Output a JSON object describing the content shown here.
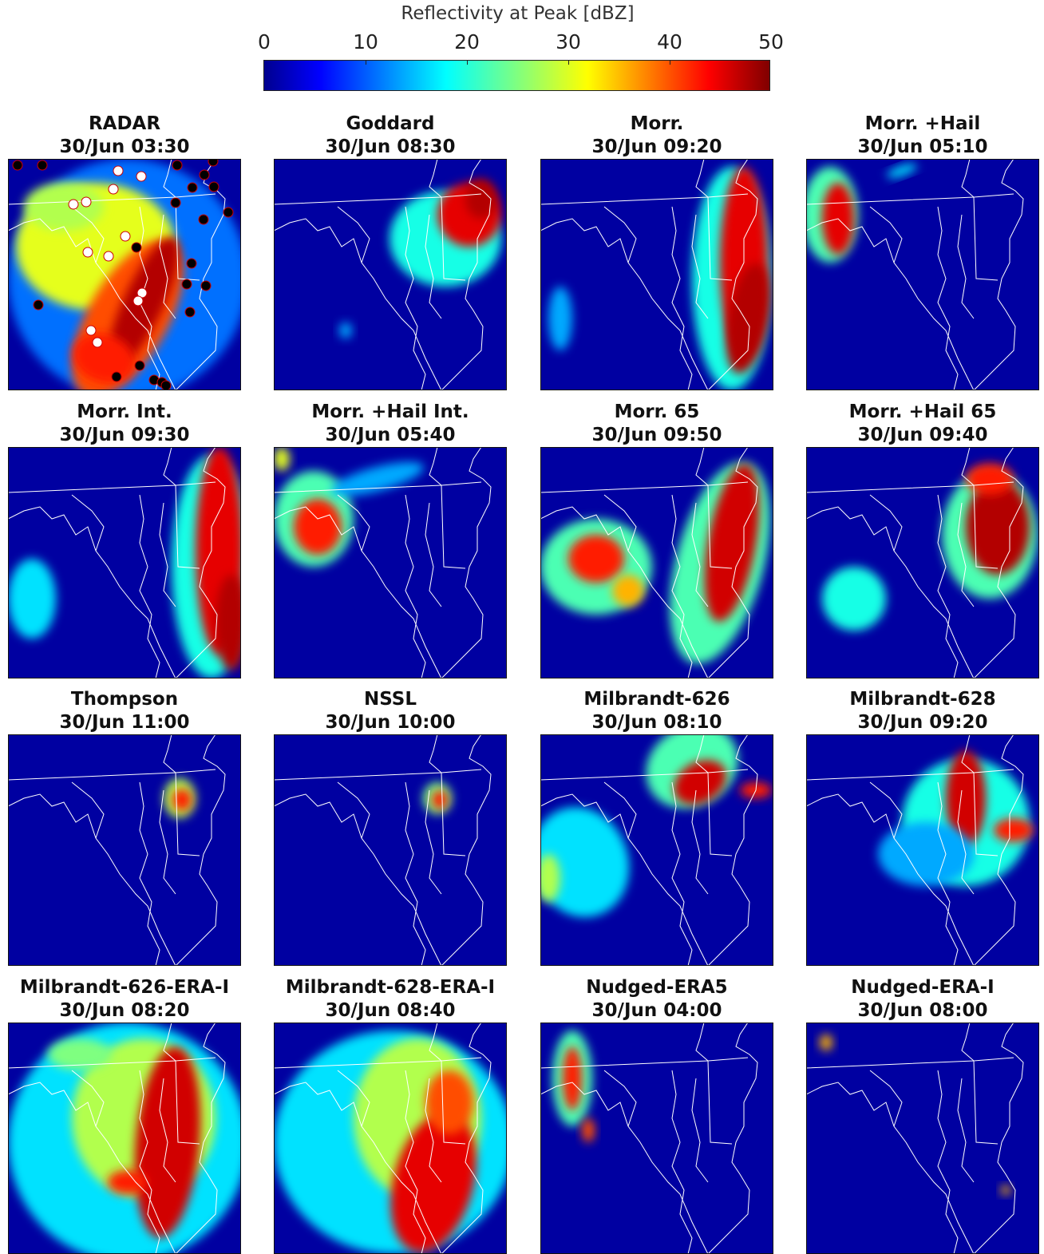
{
  "colorbar": {
    "label": "Reflectivity at Peak [dBZ]",
    "ticks": [
      "0",
      "10",
      "20",
      "30",
      "40",
      "50"
    ],
    "range": [
      0,
      50
    ],
    "colormap": "jet",
    "colors": [
      "#00008f",
      "#0000ff",
      "#0070ff",
      "#00ffff",
      "#7fff80",
      "#ffff00",
      "#ff8000",
      "#ff0000",
      "#800000"
    ]
  },
  "panels": [
    {
      "name": "RADAR",
      "time": "30/Jun 03:30"
    },
    {
      "name": "Goddard",
      "time": "30/Jun 08:30"
    },
    {
      "name": "Morr.",
      "time": "30/Jun 09:20"
    },
    {
      "name": "Morr. +Hail",
      "time": "30/Jun 05:10"
    },
    {
      "name": "Morr. Int.",
      "time": "30/Jun 09:30"
    },
    {
      "name": "Morr. +Hail Int.",
      "time": "30/Jun 05:40"
    },
    {
      "name": "Morr. 65",
      "time": "30/Jun 09:50"
    },
    {
      "name": "Morr. +Hail 65",
      "time": "30/Jun 09:40"
    },
    {
      "name": "Thompson",
      "time": "30/Jun 11:00"
    },
    {
      "name": "NSSL",
      "time": "30/Jun 10:00"
    },
    {
      "name": "Milbrandt-626",
      "time": "30/Jun 08:10"
    },
    {
      "name": "Milbrandt-628",
      "time": "30/Jun 09:20"
    },
    {
      "name": "Milbrandt-626-ERA-I",
      "time": "30/Jun 08:20"
    },
    {
      "name": "Milbrandt-628-ERA-I",
      "time": "30/Jun 08:40"
    },
    {
      "name": "Nudged-ERA5",
      "time": "30/Jun 04:00"
    },
    {
      "name": "Nudged-ERA-I",
      "time": "30/Jun 08:00"
    }
  ]
}
